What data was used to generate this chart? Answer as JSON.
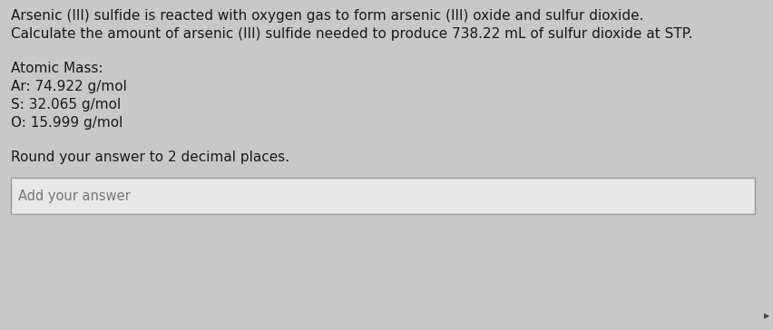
{
  "line1": "Arsenic (III) sulfide is reacted with oxygen gas to form arsenic (III) oxide and sulfur dioxide.",
  "line2": "Calculate the amount of arsenic (III) sulfide needed to produce 738.22 mL of sulfur dioxide at STP.",
  "atomic_mass_label": "Atomic Mass:",
  "ar_line": "Ar: 74.922 g/mol",
  "s_line": "S: 32.065 g/mol",
  "o_line": "O: 15.999 g/mol",
  "round_line": "Round your answer to 2 decimal places.",
  "answer_placeholder": "Add your answer",
  "bg_color": "#c8c8c8",
  "text_color": "#1a1a1a",
  "box_bg": "#e8e8e8",
  "box_border": "#999999",
  "font_size_main": 11.0,
  "font_size_answer": 10.5
}
